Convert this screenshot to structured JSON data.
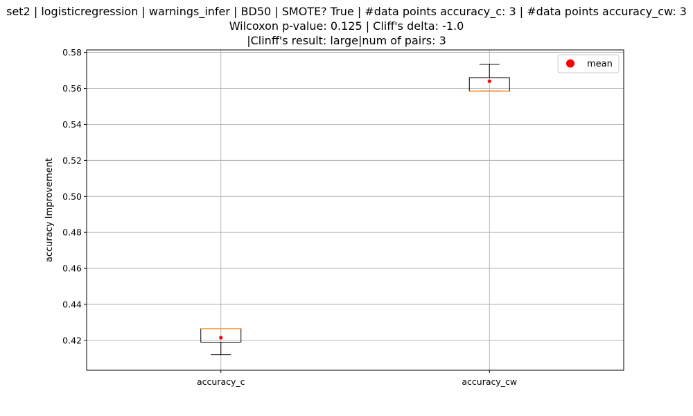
{
  "chart_data": {
    "type": "box",
    "title_lines": [
      "set2 | logisticregression | warnings_infer | BD50 | SMOTE? True | #data points accuracy_c: 3 | #data points accuracy_cw: 3",
      "Wilcoxon p-value: 0.125 | Cliff's delta: -1.0",
      "|Clinff's result: large|num of pairs: 3"
    ],
    "xlabel": "",
    "ylabel": "accuracy Improvement",
    "ylim": [
      0.4034,
      0.5814
    ],
    "yticks": [
      0.42,
      0.44,
      0.46,
      0.48,
      0.5,
      0.52,
      0.54,
      0.56,
      0.58
    ],
    "ytick_labels": [
      "0.42",
      "0.44",
      "0.46",
      "0.48",
      "0.50",
      "0.52",
      "0.54",
      "0.56",
      "0.58"
    ],
    "grid": true,
    "legend": {
      "placement": "top-right",
      "entries": [
        "mean"
      ]
    },
    "colors": {
      "box": "#000000",
      "median": "#ff7f0e",
      "mean": "#ff0000",
      "grid": "#b0b0b0"
    },
    "series": [
      {
        "category": "accuracy_c",
        "whisker_low": 0.412,
        "q1": 0.419,
        "median": 0.4265,
        "q3": 0.4265,
        "whisker_high": 0.4265,
        "mean": 0.4215
      },
      {
        "category": "accuracy_cw",
        "whisker_low": 0.5585,
        "q1": 0.5585,
        "median": 0.5585,
        "q3": 0.566,
        "whisker_high": 0.5735,
        "mean": 0.564
      }
    ]
  }
}
